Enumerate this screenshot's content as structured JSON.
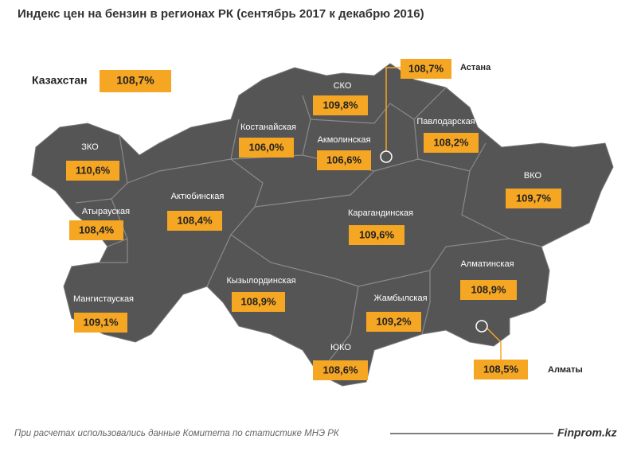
{
  "title": "Индекс цен на бензин в регионах РК (сентябрь 2017 к декабрю 2016)",
  "country": {
    "name": "Казахстан",
    "value": "108,7%"
  },
  "regions": [
    {
      "name": "Астана",
      "value": "108,7%"
    },
    {
      "name": "СКО",
      "value": "109,8%"
    },
    {
      "name": "Костанайская",
      "value": "106,0%"
    },
    {
      "name": "Акмолинская",
      "value": "106,6%"
    },
    {
      "name": "Павлодарская",
      "value": "108,2%"
    },
    {
      "name": "ЗКО",
      "value": "110,6%"
    },
    {
      "name": "ВКО",
      "value": "109,7%"
    },
    {
      "name": "Атырауская",
      "value": "108,4%"
    },
    {
      "name": "Актюбинская",
      "value": "108,4%"
    },
    {
      "name": "Карагандинская",
      "value": "109,6%"
    },
    {
      "name": "Алматинская",
      "value": "108,9%"
    },
    {
      "name": "Кызылординская",
      "value": "108,9%"
    },
    {
      "name": "Мангистауская",
      "value": "109,1%"
    },
    {
      "name": "Жамбылская",
      "value": "109,2%"
    },
    {
      "name": "ЮКО",
      "value": "108,6%"
    },
    {
      "name": "Алматы",
      "value": "108,5%"
    }
  ],
  "footer": {
    "note": "При расчетах использовались данные Комитета по статистике МНЭ РК",
    "brand": "Finprom.kz"
  }
}
